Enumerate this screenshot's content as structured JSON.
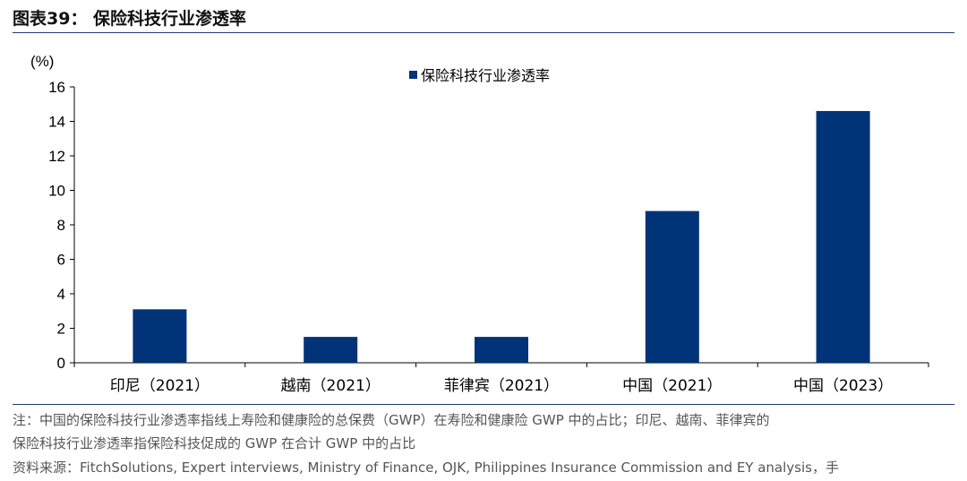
{
  "header": {
    "title": "图表39：  保险科技行业渗透率"
  },
  "chart_data": {
    "type": "bar",
    "title": "",
    "ylabel": "(%)",
    "xlabel": "",
    "categories": [
      "印尼（2021）",
      "越南（2021）",
      "菲律宾（2021）",
      "中国（2021）",
      "中国（2023）"
    ],
    "series": [
      {
        "name": "保险科技行业渗透率",
        "values": [
          3.1,
          1.5,
          1.5,
          8.8,
          14.6
        ]
      }
    ],
    "ylim": [
      0,
      16
    ],
    "yticks": [
      "0",
      "2",
      "4",
      "6",
      "8",
      "10",
      "12",
      "14",
      "16"
    ],
    "bar_color": "#003378",
    "grid": false,
    "legend": "top-center"
  },
  "footer": {
    "note_line1": "注：中国的保险科技行业渗透率指线上寿险和健康险的总保费（GWP）在寿险和健康险 GWP 中的占比；印尼、越南、菲律宾的",
    "note_line2": "保险科技行业渗透率指保险科技促成的 GWP 在合计 GWP 中的占比",
    "source": "资料来源：FitchSolutions, Expert interviews, Ministry of Finance, OJK, Philippines Insurance Commission and EY analysis，手"
  }
}
